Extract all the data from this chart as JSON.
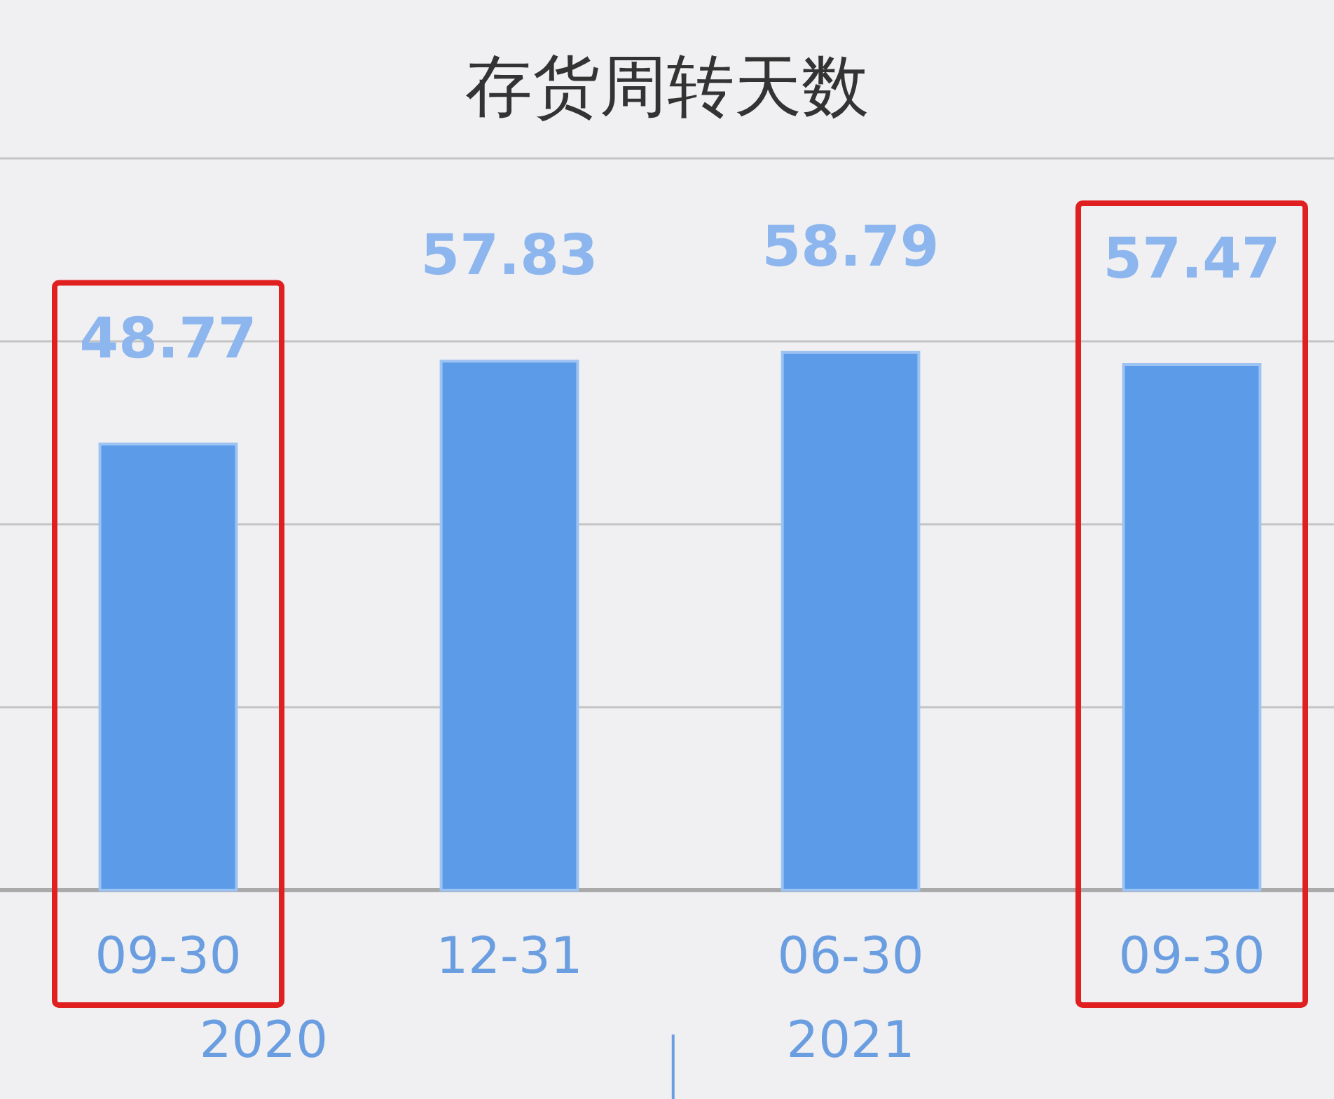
{
  "chart_data": {
    "type": "bar",
    "title": "存货周转天数",
    "categories": [
      "09-30",
      "12-31",
      "06-30",
      "09-30"
    ],
    "values": [
      48.77,
      57.83,
      58.79,
      57.47
    ],
    "color": "#5b9be8",
    "data_labels": true,
    "ylim": [
      0,
      80
    ],
    "yticks": [
      {
        "value": 0,
        "label": null
      },
      {
        "value": 20,
        "label": null
      },
      {
        "value": 40,
        "label": null
      },
      {
        "value": 60,
        "label": null
      },
      {
        "value": 80,
        "label": null
      }
    ],
    "grid": "y",
    "tick_labels": "x",
    "annotations": [
      "2020",
      "2021"
    ]
  }
}
